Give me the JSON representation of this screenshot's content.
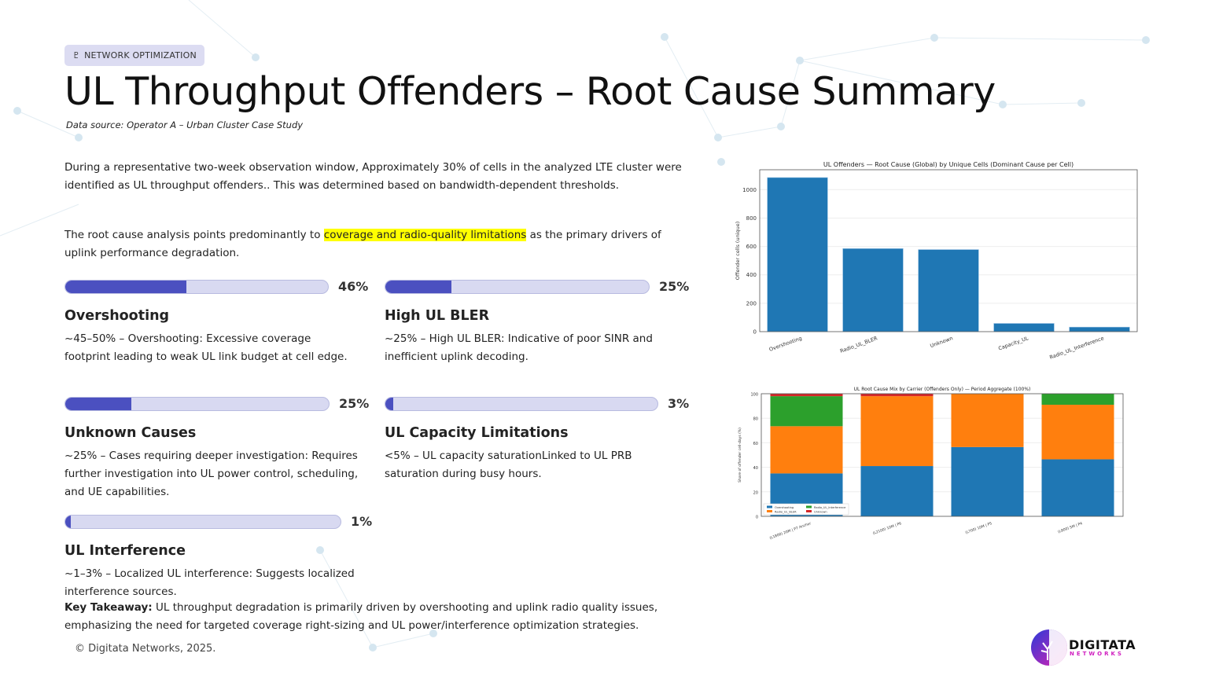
{
  "badge": {
    "icon": "network-tree-icon",
    "label": "NETWORK OPTIMIZATION"
  },
  "title": "UL Throughput Offenders – Root Cause Summary",
  "subtitle": "Data source: Operator A – Urban Cluster Case Study",
  "intro": "During a representative two-week observation window, Approximately 30% of cells in the analyzed LTE cluster were identified as UL throughput offenders.. This was determined based on bandwidth-dependent thresholds.",
  "rca": {
    "before": "The root cause analysis points predominantly to ",
    "highlight": "coverage and radio-quality limitations",
    "after": " as the primary drivers of uplink performance degradation."
  },
  "causes": [
    {
      "pct_label": "46%",
      "value": 46,
      "title": "Overshooting",
      "desc": "~45–50% – Overshooting: Excessive coverage footprint leading to weak UL link budget at cell edge."
    },
    {
      "pct_label": "25%",
      "value": 25,
      "title": "High UL BLER",
      "desc": "~25% – High UL BLER: Indicative of poor SINR and inefficient uplink decoding."
    },
    {
      "pct_label": "25%",
      "value": 25,
      "title": "Unknown Causes",
      "desc": "~25% – Cases requiring deeper investigation: Requires further investigation into UL power control, scheduling, and UE capabilities."
    },
    {
      "pct_label": "3%",
      "value": 3,
      "title": "UL Capacity Limitations",
      "desc": "<5% – UL capacity saturationLinked to UL PRB saturation during busy hours."
    },
    {
      "pct_label": "1%",
      "value": 1,
      "title": "UL Interference",
      "desc": "~1–3% – Localized UL interference: Suggests localized interference sources."
    }
  ],
  "takeaway": {
    "label": "Key Takeaway:",
    "text": " UL throughput degradation is primarily driven by overshooting and uplink radio quality issues, emphasizing the need for targeted coverage right-sizing and UL power/interference optimization strategies."
  },
  "footer": "© Digitata Networks, 2025.",
  "logo": {
    "line1": "DIGITATA",
    "line2": "NETWORKS"
  },
  "colors": {
    "accent": "#4b50c0",
    "track": "#d8d9f1",
    "overshooting": "#1f77b4",
    "bler": "#ff7f0e",
    "interference": "#2ca02c",
    "unknown": "#d62728"
  },
  "chart_data": [
    {
      "type": "bar",
      "title": "UL Offenders — Root Cause (Global) by Unique Cells (Dominant Cause per Cell)",
      "xlabel": "",
      "ylabel": "Offender cells (unique)",
      "categories": [
        "Overshooting",
        "Radio_UL_BLER",
        "Unknown",
        "Capacity_UL",
        "Radio_UL_Interference"
      ],
      "values": [
        1085,
        585,
        578,
        58,
        32
      ],
      "ylim": [
        0,
        1140
      ],
      "yticks": [
        0,
        200,
        400,
        600,
        800,
        1000
      ],
      "grid": true
    },
    {
      "type": "bar",
      "stacked": true,
      "title": "UL Root Cause Mix by Carrier (Offenders Only) — Period Aggregate (100%)",
      "xlabel": "",
      "ylabel": "Share of offender cell-days (%)",
      "categories": [
        "(L1800) 20M | P7 Anchor",
        "(L2100) 10M | P6",
        "(L700) 10M | P5",
        "(L800) 5M | P4"
      ],
      "series": [
        {
          "name": "Overshooting",
          "values": [
            35,
            41,
            56.5,
            46.5
          ]
        },
        {
          "name": "Radio_UL_BLER",
          "values": [
            38.5,
            57,
            43.5,
            44.5
          ]
        },
        {
          "name": "Radio_UL_Interference",
          "values": [
            24.5,
            0,
            0,
            9
          ]
        },
        {
          "name": "Unknown",
          "values": [
            2,
            2,
            0,
            0
          ]
        }
      ],
      "ylim": [
        0,
        100
      ],
      "yticks": [
        0,
        20,
        40,
        60,
        80,
        100
      ],
      "grid": true,
      "legend": "bottom-left"
    }
  ]
}
